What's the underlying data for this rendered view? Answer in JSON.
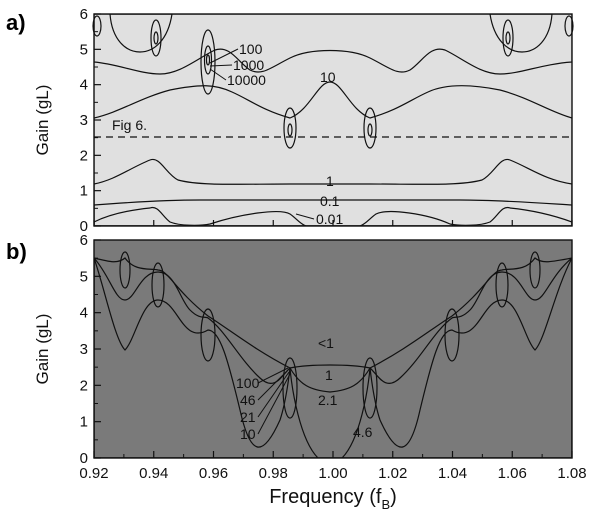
{
  "chart_data": [
    {
      "panel": "a)",
      "type": "contour",
      "ylabel": "Gain (gL)",
      "ylim": [
        0,
        6
      ],
      "xlim": [
        0.92,
        1.08
      ],
      "yticks": [
        "0",
        "1",
        "2",
        "3",
        "4",
        "5",
        "6"
      ],
      "contour_levels": [
        "0.01",
        "0.1",
        "1",
        "10",
        "100",
        "1000",
        "10000"
      ],
      "annotation": "Fig 6.",
      "reference_line_gain": 2.5,
      "shading": [
        "#6e6e6e",
        "#8d8d8d",
        "#a9a9a9",
        "#c5c5c5",
        "#e0e0e0",
        "#ebebeb"
      ]
    },
    {
      "panel": "b)",
      "type": "contour",
      "ylabel": "Gain (gL)",
      "xlabel": "Frequency (f",
      "xlabel_sub": "B",
      "xlabel_end": ")",
      "ylim": [
        0,
        6
      ],
      "xlim": [
        0.92,
        1.08
      ],
      "yticks": [
        "0",
        "1",
        "2",
        "3",
        "4",
        "5",
        "6"
      ],
      "xticks": [
        "0.92",
        "0.94",
        "0.96",
        "0.98",
        "1.00",
        "1.02",
        "1.04",
        "1.06",
        "1.08"
      ],
      "contour_levels": [
        "<1",
        "1",
        "2.1",
        "4.6",
        "10",
        "21",
        "46",
        "100"
      ],
      "shading": [
        "#7a7a7a",
        "#b9b9b9",
        "#d6d6d6",
        "#ffffff"
      ]
    }
  ]
}
